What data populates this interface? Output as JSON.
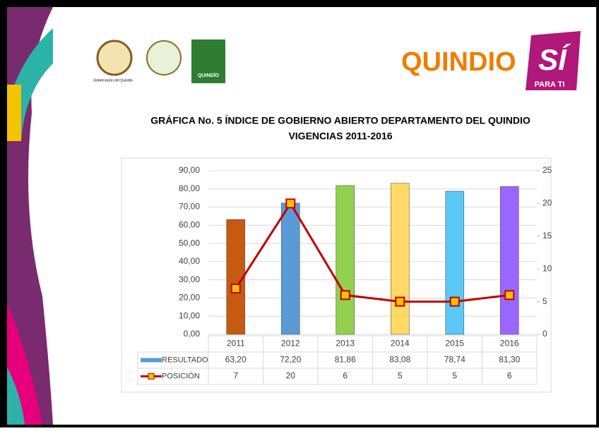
{
  "header": {
    "gov_caption": "Gobernación del Quindío",
    "badge": "QUINDÍO",
    "brand": "QUINDIO",
    "brand_si": "SÍ",
    "brand_tag": "PARA TI"
  },
  "chart_data": {
    "type": "bar",
    "title": [
      "GRÁFICA   No. 5  ÍNDICE DE GOBIERNO ABIERTO  DEPARTAMENTO DEL QUINDIO",
      "VIGENCIAS  2011-2016"
    ],
    "categories": [
      "2011",
      "2012",
      "2013",
      "2014",
      "2015",
      "2016"
    ],
    "series": [
      {
        "name": "RESULTADO",
        "type": "bar",
        "color": "#5b9bd5",
        "colors": [
          "#c55a11",
          "#5b9bd5",
          "#92d050",
          "#ffd966",
          "#5bc8f5",
          "#9966ff"
        ],
        "values": [
          63.2,
          72.2,
          81.86,
          83.08,
          78.74,
          81.3
        ],
        "value_labels": [
          "63,20",
          "72,20",
          "81,86",
          "83,08",
          "78,74",
          "81,30"
        ]
      },
      {
        "name": "POSICIÓN",
        "type": "line",
        "axis": "y2",
        "color": "#c00000",
        "marker_color": "#ffc000",
        "values": [
          7,
          20,
          6,
          5,
          5,
          6
        ]
      }
    ],
    "ylim": [
      0,
      90
    ],
    "yticks": [
      {
        "value": 0,
        "label": "0,00"
      },
      {
        "value": 10,
        "label": "10,00"
      },
      {
        "value": 20,
        "label": "20,00"
      },
      {
        "value": 30,
        "label": "30,00"
      },
      {
        "value": 40,
        "label": "40,00"
      },
      {
        "value": 50,
        "label": "50,00"
      },
      {
        "value": 60,
        "label": "60,00"
      },
      {
        "value": 70,
        "label": "70,00"
      },
      {
        "value": 80,
        "label": "80,00"
      },
      {
        "value": 90,
        "label": "90,00"
      }
    ],
    "y2lim": [
      0,
      25
    ],
    "y2ticks": [
      0,
      5,
      10,
      15,
      20,
      25
    ],
    "grid": true
  }
}
